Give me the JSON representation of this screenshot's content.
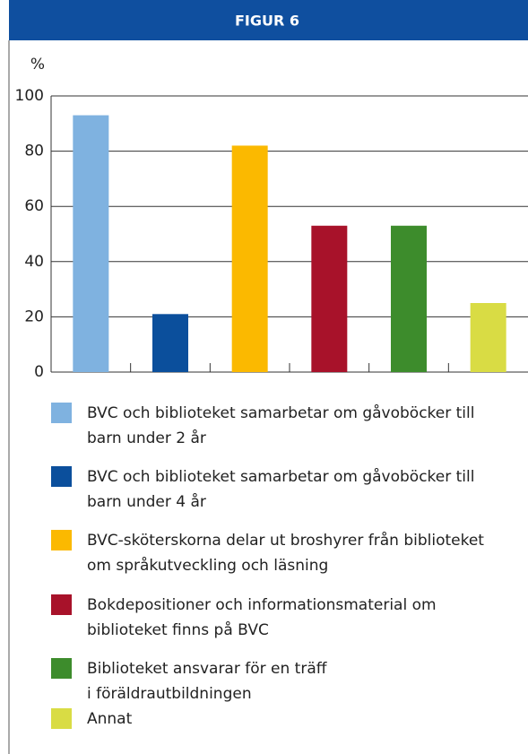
{
  "chart_data": {
    "type": "bar",
    "title": "FIGUR 6",
    "y_label": "%",
    "categories": [
      "BVC och biblioteket samarbetar om gåvoböcker till\nbarn under 2 år",
      "BVC och biblioteket samarbetar om gåvoböcker till\nbarn under 4 år",
      "BVC-sköterskorna delar ut broshyrer från biblioteket\nom språkutveckling och läsning",
      "Bokdepositioner och informationsmaterial om\nbiblioteket finns på BVC",
      "Biblioteket ansvarar för en träff\ni föräldrautbildningen",
      "Annat"
    ],
    "values": [
      93,
      21,
      82,
      53,
      53,
      25
    ],
    "colors": [
      "#7fb2e0",
      "#0b4f9c",
      "#fbb900",
      "#a8122a",
      "#3d8c2c",
      "#d9dc44"
    ],
    "ylim": [
      0,
      100
    ],
    "yticks": [
      0,
      20,
      40,
      60,
      80,
      100
    ],
    "grid": true
  }
}
